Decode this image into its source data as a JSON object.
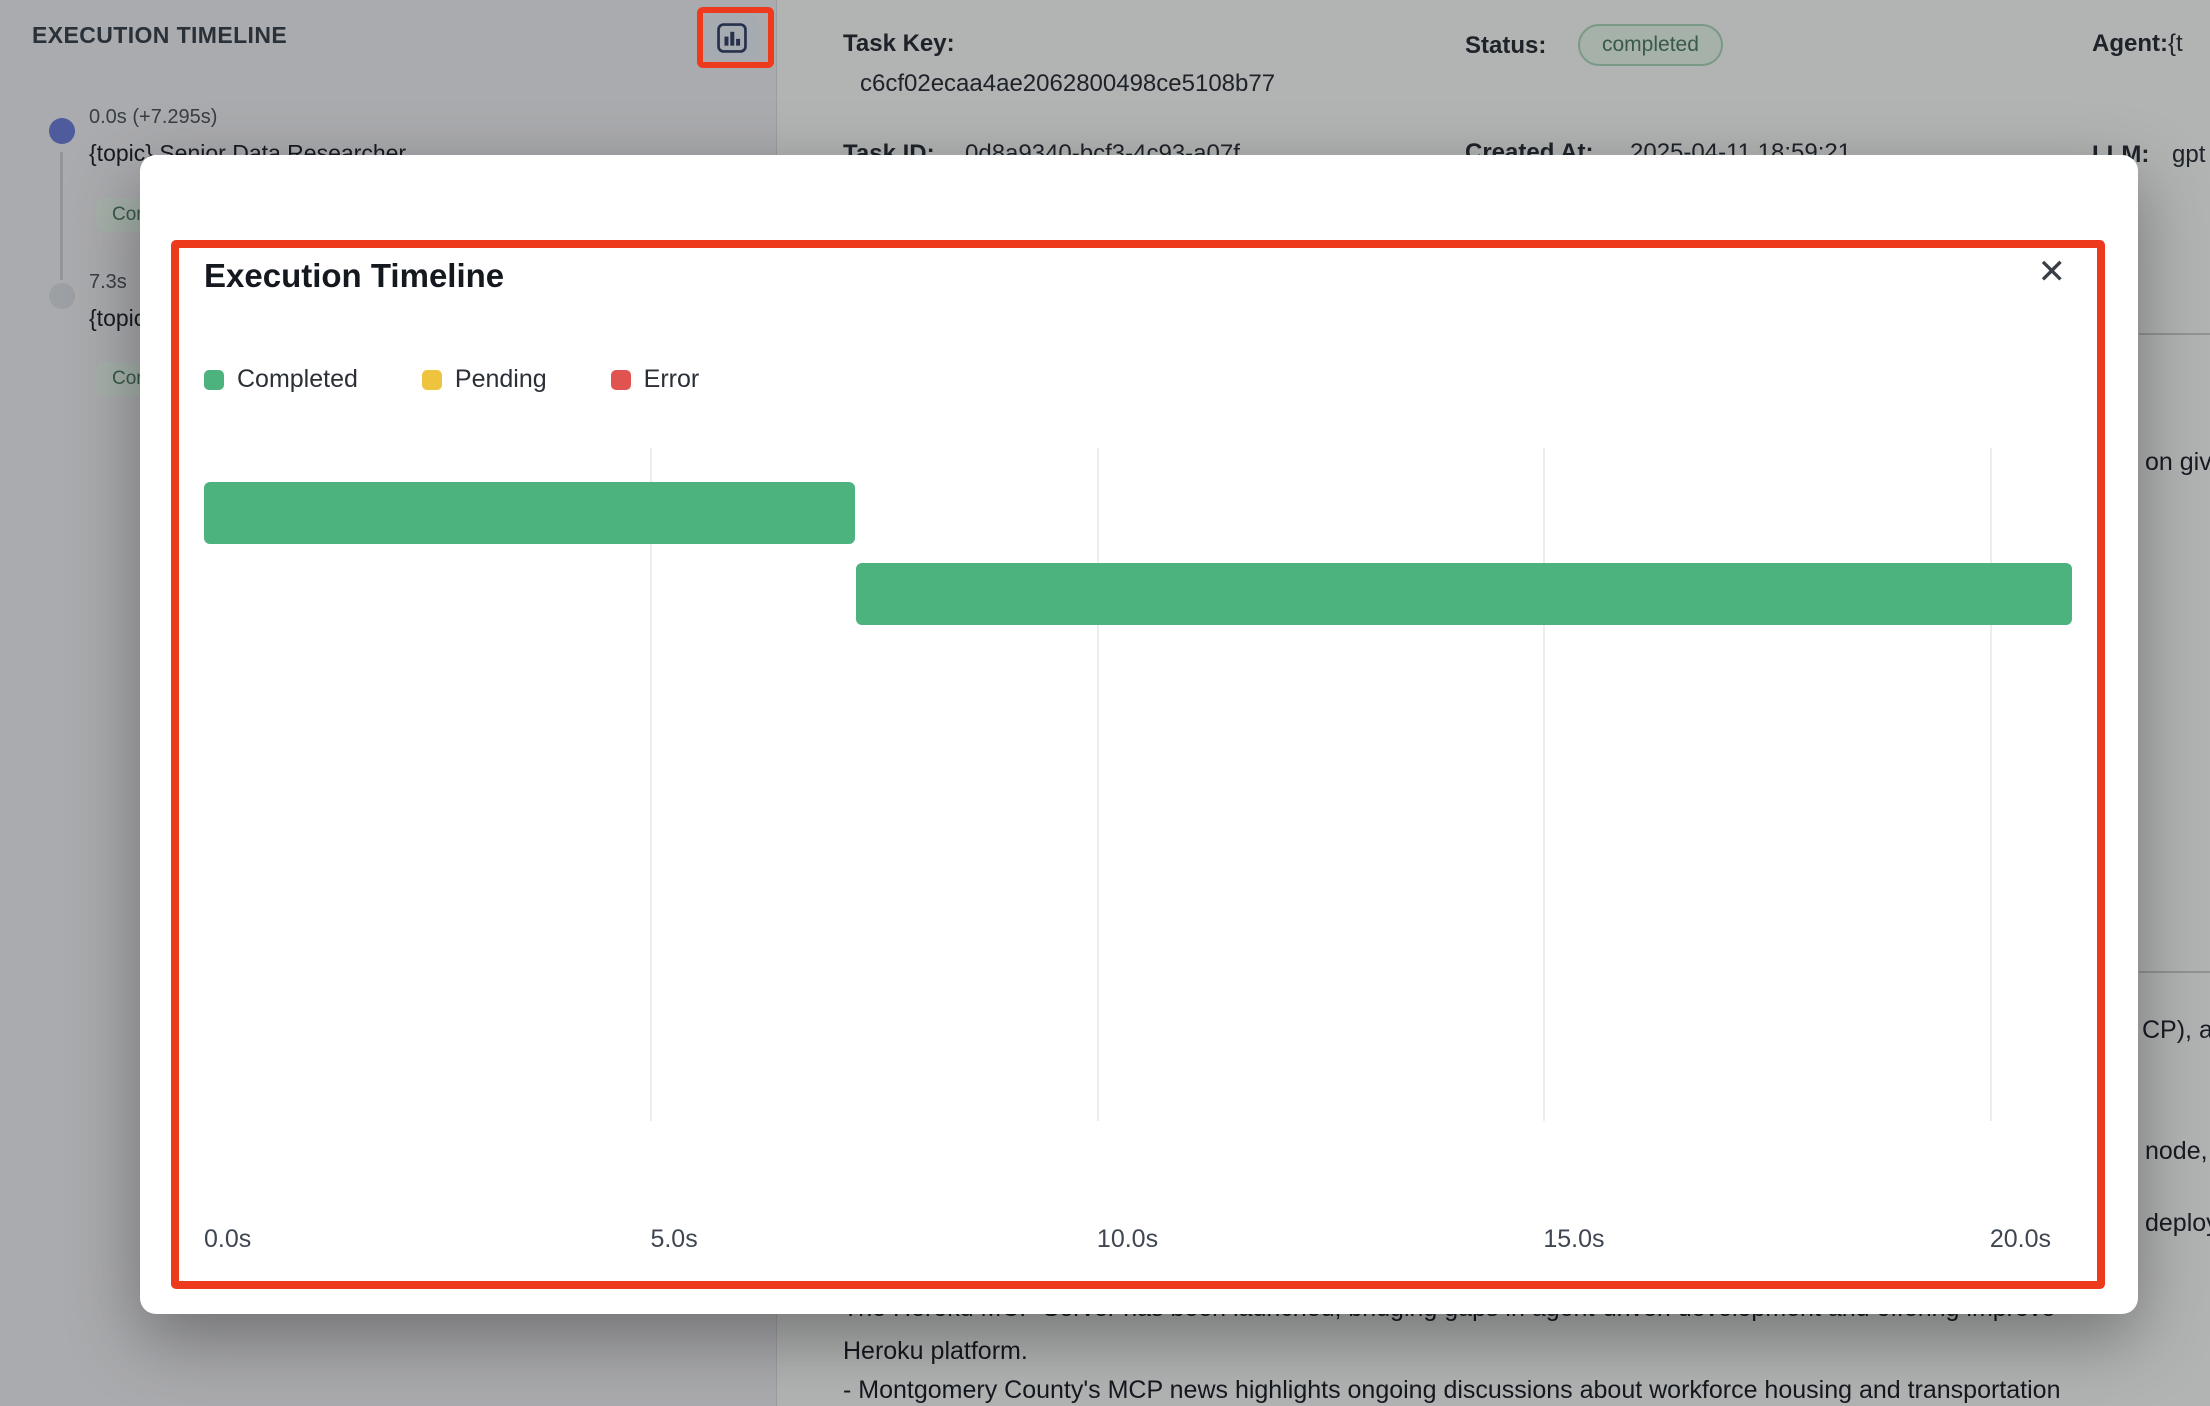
{
  "colors": {
    "annotation": "#EE3A1C",
    "completed": "#4DB37E",
    "pending": "#EEC43F",
    "error": "#E0534E",
    "event_dot_active": "#6D7ED9",
    "event_dot_inactive": "#D9DDE2",
    "badge_bg": "#E6F5EC",
    "badge_text": "#4E7D63",
    "badge_border": "#A9D6BC"
  },
  "sidebar": {
    "title": "EXECUTION TIMELINE",
    "events": [
      {
        "time": "0.0s (+7.295s)",
        "title": "{topic} Senior Data Researcher",
        "badge": "Completed"
      },
      {
        "time": "7.3s",
        "title": "{topic} Senior Data Researcher",
        "badge": "Completed"
      }
    ]
  },
  "details": {
    "task_key_label": "Task Key:",
    "task_key_value": "c6cf02ecaa4ae2062800498ce5108b77",
    "status_label": "Status:",
    "status_value": "completed",
    "agent_label": "Agent:",
    "agent_value": "{t",
    "task_id_label": "Task ID:",
    "task_id_value": "0d8a9340-bcf3-4c93-a07f",
    "created_label": "Created At:",
    "created_value": "2025-04-11 18:59:21",
    "llm_label": "LLM:",
    "llm_value": "gpt"
  },
  "fragments": {
    "right": [
      "on giv",
      "CP), a",
      "node,",
      "deploy"
    ],
    "bottom": [
      "The Heroku MCP Server has been launched, bridging gaps in agent-driven development and offering improve",
      "Heroku platform.",
      "- Montgomery County's MCP news highlights ongoing discussions about workforce housing and transportation"
    ]
  },
  "modal": {
    "title": "Execution Timeline",
    "close_icon": "✕",
    "legend": [
      {
        "label": "Completed",
        "color": "#4DB37E"
      },
      {
        "label": "Pending",
        "color": "#EEC43F"
      },
      {
        "label": "Error",
        "color": "#E0534E"
      }
    ]
  },
  "chart_data": {
    "type": "gantt",
    "title": "Execution Timeline",
    "x_unit": "seconds",
    "x_max": 20.92,
    "grid": true,
    "ticks": [
      {
        "value": 0,
        "label": "0.0s"
      },
      {
        "value": 5,
        "label": "5.0s"
      },
      {
        "value": 10,
        "label": "10.0s"
      },
      {
        "value": 15,
        "label": "15.0s"
      },
      {
        "value": 20,
        "label": "20.0s"
      }
    ],
    "bars": [
      {
        "row": 0,
        "start": 0,
        "end": 7.295,
        "status": "completed",
        "color": "#4DB37E"
      },
      {
        "row": 1,
        "start": 7.3,
        "end": 20.92,
        "status": "completed",
        "color": "#4DB37E"
      }
    ]
  }
}
